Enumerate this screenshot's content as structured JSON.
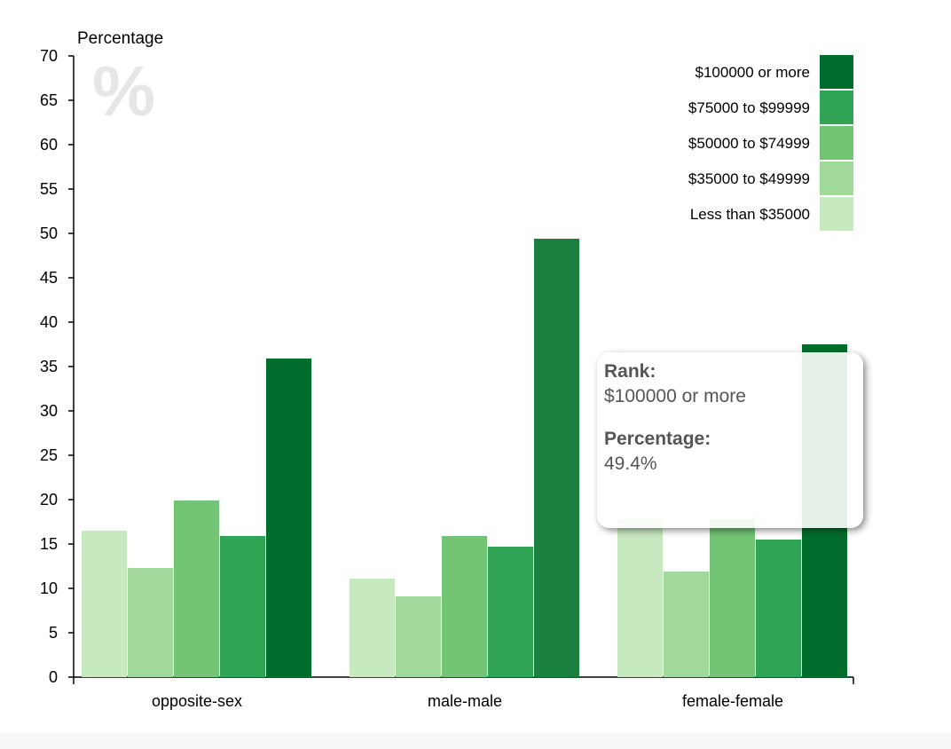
{
  "chart_data": {
    "type": "bar",
    "ylabel": "Percentage",
    "watermark": "%",
    "ylim": [
      0,
      70
    ],
    "yticks": [
      0,
      5,
      10,
      15,
      20,
      25,
      30,
      35,
      40,
      45,
      50,
      55,
      60,
      65,
      70
    ],
    "categories": [
      "opposite-sex",
      "male-male",
      "female-female"
    ],
    "series": [
      {
        "name": "Less than $35000",
        "color": "#c7e9c0",
        "values": [
          16.5,
          11.1,
          17.8
        ]
      },
      {
        "name": "$35000 to $49999",
        "color": "#a1d99b",
        "values": [
          12.3,
          9.1,
          11.9
        ]
      },
      {
        "name": "$50000 to $74999",
        "color": "#74c476",
        "values": [
          19.9,
          15.9,
          17.8
        ]
      },
      {
        "name": "$75000 to $99999",
        "color": "#31a354",
        "values": [
          15.9,
          14.7,
          15.5
        ]
      },
      {
        "name": "$100000 or more",
        "color": "#006d2c",
        "values": [
          35.9,
          49.4,
          37.5
        ]
      }
    ],
    "highlight": {
      "series": 4,
      "category": 1,
      "color": "#1a8040"
    },
    "legend_order": [
      4,
      3,
      2,
      1,
      0
    ],
    "legend_position": "top-right"
  },
  "tooltip": {
    "rank_label": "Rank:",
    "rank_value": "$100000 or more",
    "pct_label": "Percentage:",
    "pct_value": "49.4%"
  }
}
